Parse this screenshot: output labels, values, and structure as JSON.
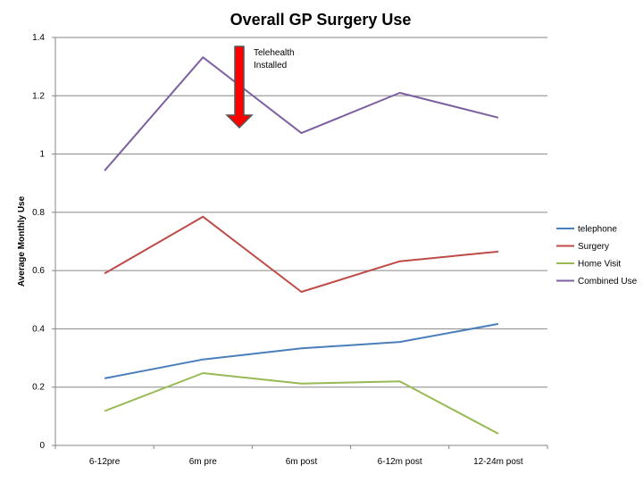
{
  "chart_data": {
    "type": "line",
    "title": "Overall GP Surgery Use",
    "xlabel": "",
    "ylabel": "Average Monthly Use",
    "categories": [
      "6-12pre",
      "6m pre",
      "6m post",
      "6-12m post",
      "12-24m post"
    ],
    "ylim": [
      0,
      1.4
    ],
    "yticks": [
      0,
      0.2,
      0.4,
      0.6,
      0.8,
      1,
      1.2,
      1.4
    ],
    "ytick_labels": [
      "0",
      "0.2",
      "0.4",
      "0.6",
      "0.8",
      "1",
      "1.2",
      "1.4"
    ],
    "grid": true,
    "legend_position": "right",
    "series": [
      {
        "name": "telephone",
        "color": "#4a7ebb",
        "values": [
          0.23,
          0.295,
          0.333,
          0.355,
          0.417
        ]
      },
      {
        "name": "Surgery",
        "color": "#be4b48",
        "values": [
          0.59,
          0.785,
          0.527,
          0.632,
          0.665
        ]
      },
      {
        "name": "Home Visit",
        "color": "#98b954",
        "values": [
          0.118,
          0.248,
          0.212,
          0.22,
          0.04
        ]
      },
      {
        "name": "Combined Use",
        "color": "#7d60a0",
        "values": [
          0.943,
          1.332,
          1.072,
          1.21,
          1.125
        ]
      }
    ],
    "annotations": [
      {
        "text_lines": [
          "Telehealth",
          "Installed"
        ],
        "marker": "down-arrow",
        "arrow_color": "#ff0000"
      }
    ]
  }
}
